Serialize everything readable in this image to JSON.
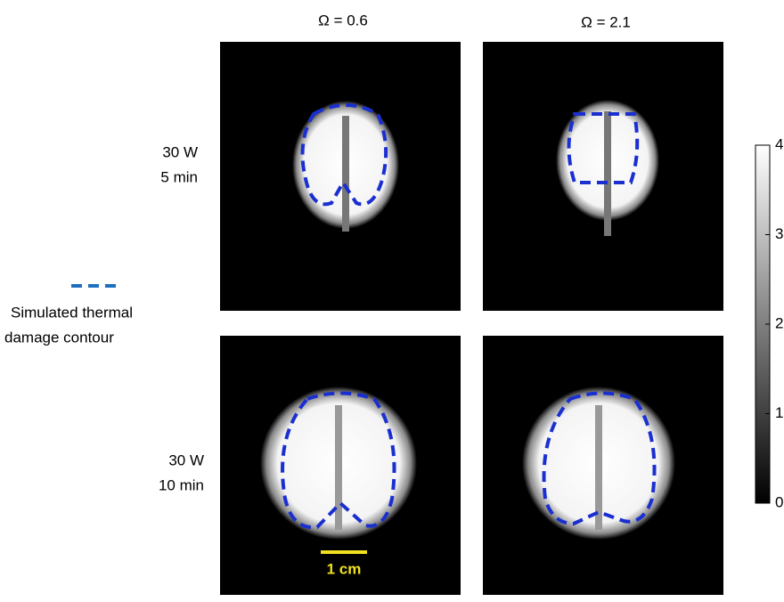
{
  "column_headers": [
    "Ω = 0.6",
    "Ω = 2.1"
  ],
  "rows": [
    {
      "power": "30 W",
      "duration": "5 min"
    },
    {
      "power": "30 W",
      "duration": "10 min"
    }
  ],
  "legend": {
    "lines": [
      "Simulated thermal",
      "damage contour"
    ]
  },
  "scale_bar": "1 cm",
  "colorbar": {
    "ylim": [
      0,
      4
    ],
    "yticks": [
      0,
      1,
      2,
      3,
      4
    ]
  }
}
